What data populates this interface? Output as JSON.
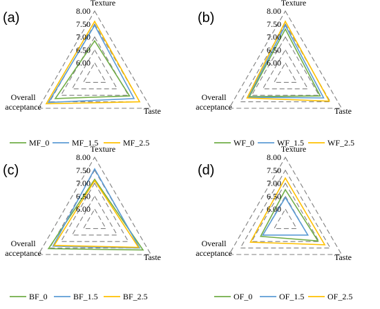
{
  "chart_data": [
    {
      "type": "radar",
      "panel": "(a)",
      "axes": [
        "Texture",
        "Taste",
        "Overall acceptance"
      ],
      "rlim": [
        5.5,
        8.0
      ],
      "ticks": [
        "6.00",
        "6.50",
        "7.00",
        "7.50",
        "8.00"
      ],
      "series": [
        {
          "name": "MF_0",
          "color": "#70ad47",
          "values": [
            6.85,
            7.05,
            7.25
          ]
        },
        {
          "name": "MF_1.5",
          "color": "#5b9bd5",
          "values": [
            7.45,
            7.25,
            7.55
          ]
        },
        {
          "name": "MF_2.5",
          "color": "#ffc000",
          "values": [
            7.6,
            7.5,
            7.65
          ]
        }
      ]
    },
    {
      "type": "radar",
      "panel": "(b)",
      "axes": [
        "Texture",
        "Taste",
        "Overall acceptance"
      ],
      "rlim": [
        5.5,
        8.0
      ],
      "ticks": [
        "6.00",
        "6.50",
        "7.00",
        "7.50",
        "8.00"
      ],
      "series": [
        {
          "name": "WF_0",
          "color": "#70ad47",
          "values": [
            7.3,
            7.05,
            7.1
          ]
        },
        {
          "name": "WF_1.5",
          "color": "#5b9bd5",
          "values": [
            7.45,
            7.2,
            7.15
          ]
        },
        {
          "name": "WF_2.5",
          "color": "#ffc000",
          "values": [
            7.6,
            7.45,
            7.2
          ]
        }
      ]
    },
    {
      "type": "radar",
      "panel": "(c)",
      "axes": [
        "Texture",
        "Taste",
        "Overall acceptance"
      ],
      "rlim": [
        5.5,
        8.0
      ],
      "ticks": [
        "6.00",
        "6.50",
        "7.00",
        "7.50",
        "8.00"
      ],
      "series": [
        {
          "name": "BF_0",
          "color": "#70ad47",
          "values": [
            7.15,
            7.65,
            7.55
          ]
        },
        {
          "name": "BF_1.5",
          "color": "#5b9bd5",
          "values": [
            7.55,
            7.5,
            7.35
          ]
        },
        {
          "name": "BF_2.5",
          "color": "#ffc000",
          "values": [
            7.1,
            7.45,
            7.3
          ]
        }
      ]
    },
    {
      "type": "radar",
      "panel": "(d)",
      "axes": [
        "Texture",
        "Taste",
        "Overall acceptance"
      ],
      "rlim": [
        5.5,
        8.0
      ],
      "ticks": [
        "6.00",
        "6.50",
        "7.00",
        "7.50",
        "8.00"
      ],
      "series": [
        {
          "name": "OF_0",
          "color": "#70ad47",
          "values": [
            6.75,
            6.95,
            6.6
          ]
        },
        {
          "name": "OF_1.5",
          "color": "#5b9bd5",
          "values": [
            6.45,
            6.5,
            6.5
          ]
        },
        {
          "name": "OF_2.5",
          "color": "#ffc000",
          "values": [
            7.2,
            7.25,
            7.05
          ]
        }
      ]
    }
  ]
}
